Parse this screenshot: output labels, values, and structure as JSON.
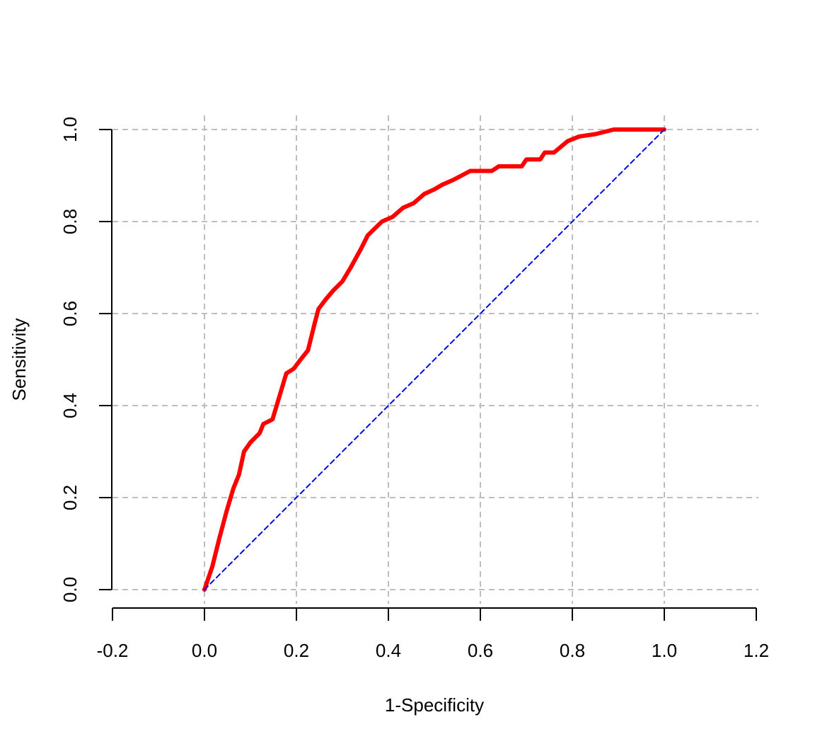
{
  "chart_data": {
    "type": "line",
    "title": "",
    "xlabel": "1-Specificity",
    "ylabel": "Sensitivity",
    "xlim": [
      -0.2,
      1.2
    ],
    "ylim": [
      0,
      1
    ],
    "x_ticks": [
      "-0.2",
      "0.0",
      "0.2",
      "0.4",
      "0.6",
      "0.8",
      "1.0",
      "1.2"
    ],
    "x_tick_values": [
      -0.2,
      0,
      0.2,
      0.4,
      0.6,
      0.8,
      1.0,
      1.2
    ],
    "y_ticks": [
      "0.0",
      "0.2",
      "0.4",
      "0.6",
      "0.8",
      "1.0"
    ],
    "y_tick_values": [
      0,
      0.2,
      0.4,
      0.6,
      0.8,
      1.0
    ],
    "grid": true,
    "grid_x": [
      0,
      0.2,
      0.4,
      0.6,
      0.8,
      1.0
    ],
    "series": [
      {
        "name": "ROC curve",
        "color": "#ff0000",
        "x": [
          0,
          0.017,
          0.032,
          0.048,
          0.063,
          0.075,
          0.086,
          0.1,
          0.12,
          0.128,
          0.148,
          0.16,
          0.178,
          0.194,
          0.209,
          0.225,
          0.24,
          0.248,
          0.263,
          0.28,
          0.3,
          0.318,
          0.34,
          0.355,
          0.386,
          0.409,
          0.432,
          0.455,
          0.478,
          0.5,
          0.517,
          0.54,
          0.578,
          0.625,
          0.64,
          0.69,
          0.7,
          0.73,
          0.74,
          0.76,
          0.79,
          0.815,
          0.85,
          0.89,
          1.0
        ],
        "y": [
          0,
          0.05,
          0.11,
          0.17,
          0.22,
          0.25,
          0.3,
          0.32,
          0.34,
          0.36,
          0.37,
          0.41,
          0.47,
          0.48,
          0.5,
          0.52,
          0.58,
          0.61,
          0.63,
          0.65,
          0.67,
          0.7,
          0.74,
          0.77,
          0.8,
          0.81,
          0.83,
          0.84,
          0.86,
          0.87,
          0.88,
          0.89,
          0.91,
          0.91,
          0.92,
          0.92,
          0.935,
          0.935,
          0.95,
          0.95,
          0.975,
          0.985,
          0.99,
          1.0,
          1.0
        ]
      },
      {
        "name": "Reference line",
        "color": "#0000ff",
        "dashed": true,
        "x": [
          0,
          1
        ],
        "y": [
          0,
          1
        ]
      }
    ]
  }
}
